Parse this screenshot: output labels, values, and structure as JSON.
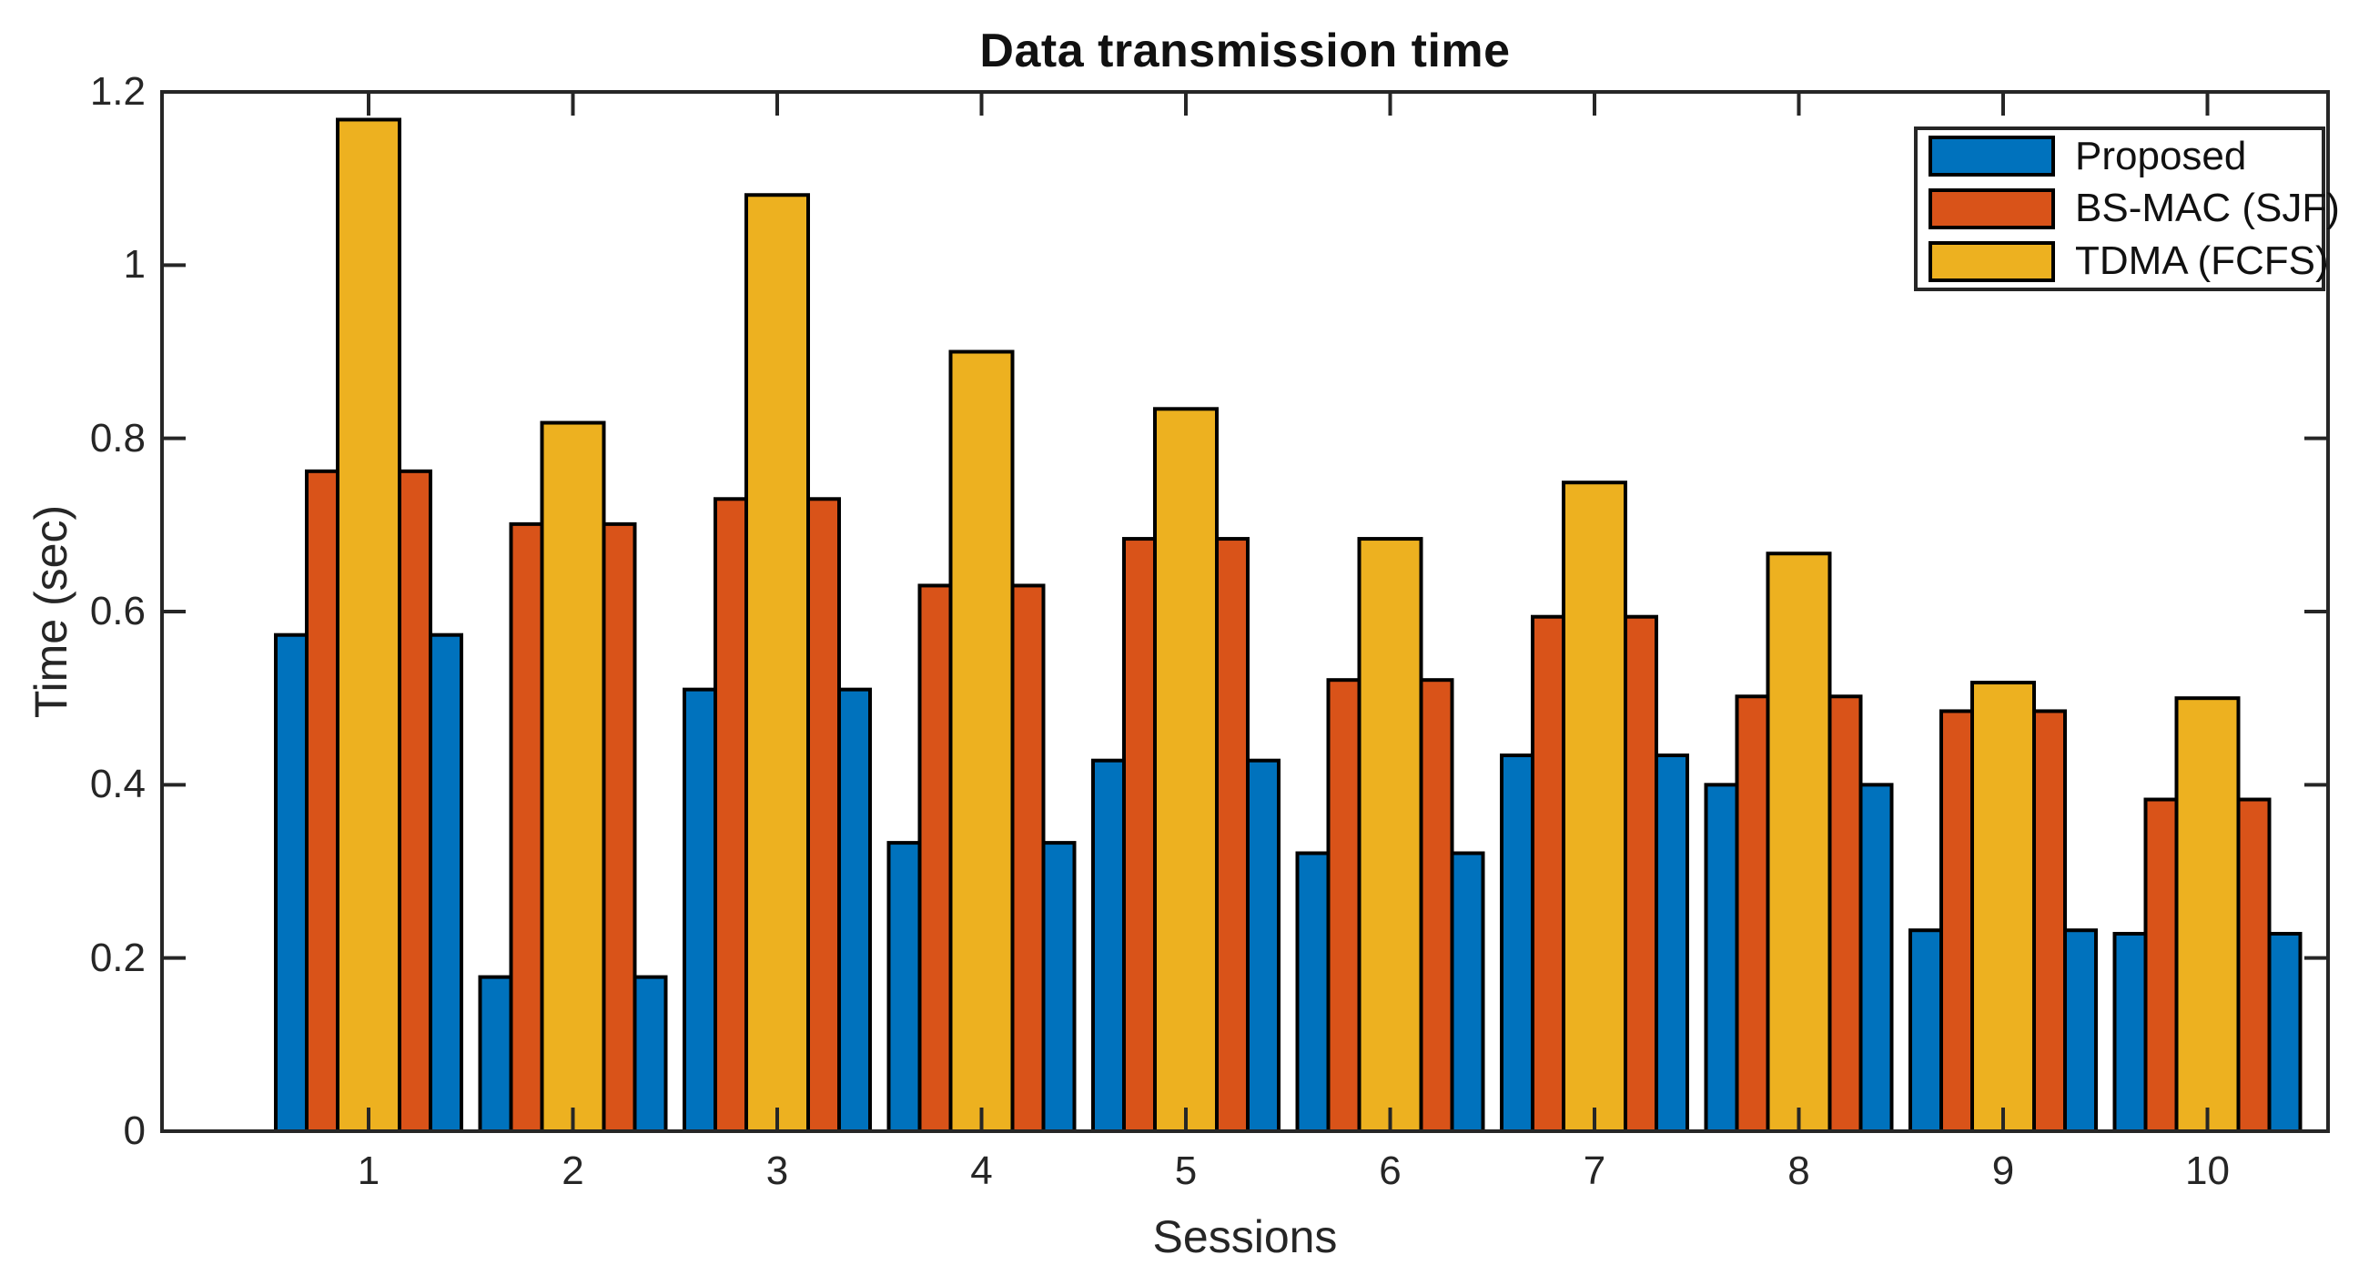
{
  "figure": {
    "title": "Data transmission time",
    "xlabel": "Sessions",
    "ylabel": "Time (sec)"
  },
  "legend": {
    "items": [
      {
        "label": "Proposed",
        "color": "#0072BD"
      },
      {
        "label": "BS-MAC (SJF)",
        "color": "#D95319"
      },
      {
        "label": "TDMA (FCFS)",
        "color": "#EDB120"
      }
    ]
  },
  "chart_data": {
    "type": "bar",
    "title": "Data transmission time",
    "xlabel": "Sessions",
    "ylabel": "Time (sec)",
    "categories": [
      "1",
      "2",
      "3",
      "4",
      "5",
      "6",
      "7",
      "8",
      "9",
      "10"
    ],
    "series": [
      {
        "name": "Proposed",
        "color": "#0072BD",
        "values": [
          0.573,
          0.178,
          0.51,
          0.333,
          0.428,
          0.321,
          0.434,
          0.4,
          0.232,
          0.228
        ]
      },
      {
        "name": "BS-MAC (SJF)",
        "color": "#D95319",
        "values": [
          0.762,
          0.701,
          0.73,
          0.63,
          0.684,
          0.521,
          0.594,
          0.502,
          0.485,
          0.383
        ]
      },
      {
        "name": "TDMA (FCFS)",
        "color": "#EDB120",
        "values": [
          1.168,
          0.818,
          1.081,
          0.9,
          0.834,
          0.684,
          0.749,
          0.667,
          0.518,
          0.5
        ]
      }
    ],
    "ylim": [
      0,
      1.2
    ],
    "y_ticks": [
      "0",
      "0.2",
      "0.4",
      "0.6",
      "0.8",
      "1",
      "1.2"
    ],
    "grid": false,
    "legend_position": "top-right",
    "group_layout": "mirrored per session: Proposed | BS-MAC | TDMA (double width) | BS-MAC | Proposed",
    "bar_edge_color": "#000000",
    "axis_color": "#262626"
  }
}
